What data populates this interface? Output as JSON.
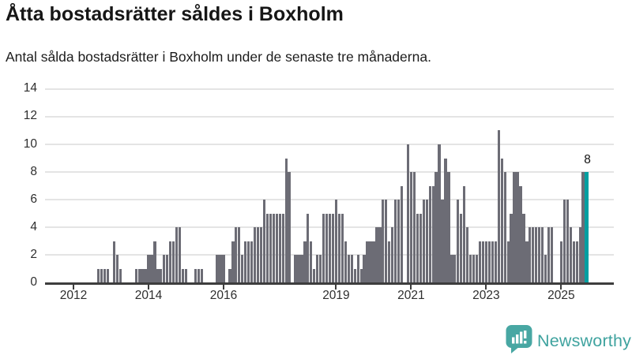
{
  "header": {
    "title": "Åtta bostadsrätter såldes i Boxholm",
    "subtitle": "Antal sålda bostadsrätter i Boxholm under de senaste tre månaderna."
  },
  "chart_data": {
    "type": "bar",
    "title": "Åtta bostadsrätter såldes i Boxholm",
    "subtitle": "Antal sålda bostadsrätter i Boxholm under de senaste tre månaderna.",
    "xlabel": "",
    "ylabel": "",
    "ylim": [
      0,
      14
    ],
    "y_ticks": [
      0,
      2,
      4,
      6,
      8,
      10,
      12,
      14
    ],
    "x_tick_years": [
      2012,
      2014,
      2016,
      2019,
      2021,
      2023,
      2025
    ],
    "grid": "horizontal",
    "legend": "none",
    "bar_color": "#6c6c75",
    "highlight_color": "#009fa1",
    "axis_color": "#3d3d3d",
    "gridline_color": "#e4e4e4",
    "start_month": "2011-04",
    "series": [
      {
        "year": 2011,
        "first_month": 4,
        "values": [
          0,
          0,
          0,
          0,
          0,
          0,
          0,
          0,
          0
        ]
      },
      {
        "year": 2012,
        "first_month": 1,
        "values": [
          0,
          0,
          0,
          0,
          0,
          0,
          0,
          0,
          1,
          1,
          1,
          1
        ]
      },
      {
        "year": 2013,
        "first_month": 1,
        "values": [
          0,
          3,
          2,
          1,
          0,
          0,
          0,
          0,
          1,
          1,
          1,
          1
        ]
      },
      {
        "year": 2014,
        "first_month": 1,
        "values": [
          2,
          2,
          3,
          1,
          1,
          2,
          2,
          3,
          3,
          4,
          4,
          1
        ]
      },
      {
        "year": 2015,
        "first_month": 1,
        "values": [
          1,
          0,
          0,
          1,
          1,
          1,
          0,
          0,
          0,
          0,
          2,
          2
        ]
      },
      {
        "year": 2016,
        "first_month": 1,
        "values": [
          2,
          0,
          1,
          3,
          4,
          4,
          2,
          3,
          3,
          3,
          4,
          4
        ]
      },
      {
        "year": 2017,
        "first_month": 1,
        "values": [
          4,
          6,
          5,
          5,
          5,
          5,
          5,
          5,
          9,
          8,
          0,
          2
        ]
      },
      {
        "year": 2018,
        "first_month": 1,
        "values": [
          2,
          2,
          3,
          5,
          3,
          1,
          2,
          2,
          5,
          5,
          5,
          5
        ]
      },
      {
        "year": 2019,
        "first_month": 1,
        "values": [
          6,
          5,
          5,
          3,
          2,
          2,
          1,
          2,
          1,
          2,
          3,
          3
        ]
      },
      {
        "year": 2020,
        "first_month": 1,
        "values": [
          3,
          4,
          4,
          6,
          6,
          3,
          4,
          6,
          6,
          7,
          0,
          10
        ]
      },
      {
        "year": 2021,
        "first_month": 1,
        "values": [
          8,
          8,
          5,
          5,
          6,
          6,
          7,
          7,
          8,
          10,
          6,
          9
        ]
      },
      {
        "year": 2022,
        "first_month": 1,
        "values": [
          8,
          2,
          2,
          6,
          5,
          7,
          4,
          2,
          2,
          2,
          3,
          3
        ]
      },
      {
        "year": 2023,
        "first_month": 1,
        "values": [
          3,
          3,
          3,
          3,
          11,
          9,
          8,
          3,
          5,
          8,
          8,
          7
        ]
      },
      {
        "year": 2024,
        "first_month": 1,
        "values": [
          5,
          3,
          4,
          4,
          4,
          4,
          4,
          2,
          4,
          4,
          0,
          0
        ]
      },
      {
        "year": 2025,
        "first_month": 1,
        "values": [
          3,
          6,
          6,
          4,
          3,
          3,
          4,
          8,
          8
        ]
      }
    ],
    "highlight": {
      "position": "last",
      "value": 8,
      "label": "8"
    }
  },
  "branding": {
    "logo_text": "Newsworthy",
    "logo_color": "#3fa39f",
    "logo_icon": "bar-chart-speech-bubble-icon",
    "logo_icon_color": "#48a7a3"
  }
}
